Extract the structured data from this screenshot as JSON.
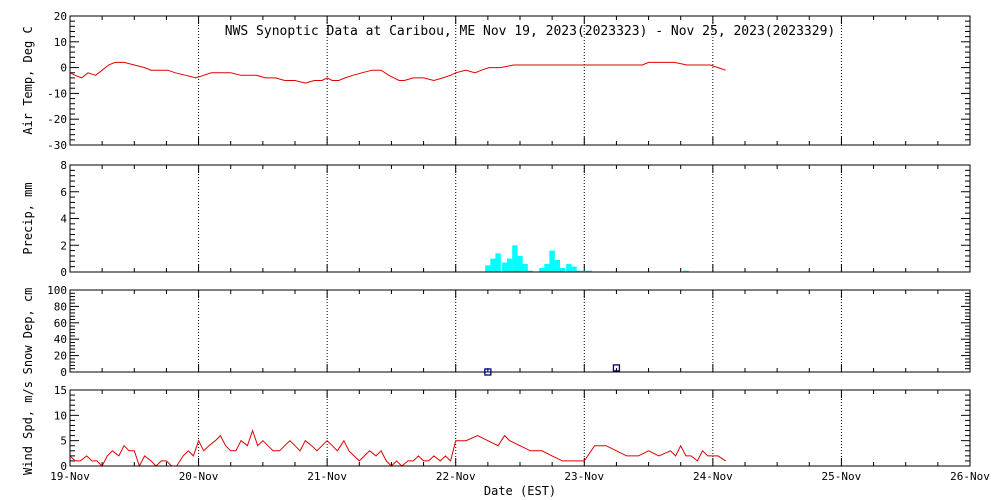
{
  "title": "NWS Synoptic Data at Caribou, ME   Nov 19, 2023(2023323) - Nov 25, 2023(2023329)",
  "xlabel": "Date (EST)",
  "colors": {
    "temp": "#e00000",
    "precip": "#00ffff",
    "snow": "#000080",
    "wind": "#e00000",
    "axis": "#000000",
    "grid": "#000000"
  },
  "chart_data": [
    {
      "id": "temp",
      "type": "line",
      "ylabel": "Air Temp, Deg C",
      "ylim": [
        -30,
        20
      ],
      "yticks": [
        -30,
        -20,
        -10,
        0,
        10,
        20
      ],
      "xlim": [
        0,
        7
      ],
      "xticks": [
        0,
        1,
        2,
        3,
        4,
        5,
        6,
        7
      ],
      "xticklabels": [
        "19-Nov",
        "20-Nov",
        "21-Nov",
        "22-Nov",
        "23-Nov",
        "24-Nov",
        "25-Nov",
        "26-Nov"
      ],
      "grid": true,
      "x": [
        0.0,
        0.04,
        0.09,
        0.14,
        0.2,
        0.25,
        0.3,
        0.35,
        0.42,
        0.5,
        0.58,
        0.63,
        0.7,
        0.76,
        0.82,
        0.9,
        0.98,
        1.04,
        1.1,
        1.17,
        1.25,
        1.33,
        1.4,
        1.45,
        1.52,
        1.6,
        1.67,
        1.75,
        1.83,
        1.9,
        1.96,
        2.0,
        2.04,
        2.09,
        2.14,
        2.2,
        2.27,
        2.35,
        2.42,
        2.48,
        2.52,
        2.56,
        2.6,
        2.67,
        2.75,
        2.83,
        2.9,
        2.96,
        3.0,
        3.08,
        3.15,
        3.2,
        3.26,
        3.35,
        3.45,
        3.55,
        3.65,
        3.75,
        3.85,
        3.95,
        4.05,
        4.15,
        4.25,
        4.35,
        4.45,
        4.5,
        4.6,
        4.7,
        4.8,
        4.9,
        4.98,
        5.04,
        5.1
      ],
      "y": [
        -2,
        -3,
        -4,
        -2,
        -3,
        -1,
        1,
        2,
        2,
        1,
        0,
        -1,
        -1,
        -1,
        -2,
        -3,
        -4,
        -3,
        -2,
        -2,
        -2,
        -3,
        -3,
        -3,
        -4,
        -4,
        -5,
        -5,
        -6,
        -5,
        -5,
        -4,
        -5,
        -5,
        -4,
        -3,
        -2,
        -1,
        -1,
        -3,
        -4,
        -5,
        -5,
        -4,
        -4,
        -5,
        -4,
        -3,
        -2,
        -1,
        -2,
        -1,
        0,
        0,
        1,
        1,
        1,
        1,
        1,
        1,
        1,
        1,
        1,
        1,
        1,
        2,
        2,
        2,
        1,
        1,
        1,
        0,
        -1
      ]
    },
    {
      "id": "precip",
      "type": "bar",
      "ylabel": "Precip, mm",
      "ylim": [
        0,
        8
      ],
      "yticks": [
        0,
        2,
        4,
        6,
        8
      ],
      "xlim": [
        0,
        7
      ],
      "xticks": [
        0,
        1,
        2,
        3,
        4,
        5,
        6,
        7
      ],
      "grid": true,
      "bar_width": 0.042,
      "x": [
        3.25,
        3.29,
        3.33,
        3.38,
        3.42,
        3.46,
        3.5,
        3.54,
        3.58,
        3.67,
        3.71,
        3.75,
        3.79,
        3.83,
        3.88,
        3.92,
        3.96,
        4.0,
        4.04,
        4.79
      ],
      "values": [
        0.5,
        1.0,
        1.4,
        0.7,
        1.0,
        2.0,
        1.2,
        0.6,
        0.1,
        0.3,
        0.6,
        1.6,
        0.9,
        0.3,
        0.6,
        0.4,
        0.1,
        0.1,
        0.1,
        0.1
      ]
    },
    {
      "id": "snow",
      "type": "scatter",
      "ylabel": "Snow Dep, cm",
      "ylim": [
        0,
        100
      ],
      "yticks": [
        0,
        20,
        40,
        60,
        80,
        100
      ],
      "minor_yticks": [
        10,
        30,
        50,
        70,
        90
      ],
      "xlim": [
        0,
        7
      ],
      "xticks": [
        0,
        1,
        2,
        3,
        4,
        5,
        6,
        7
      ],
      "grid": true,
      "x": [
        3.25,
        4.25
      ],
      "y": [
        0,
        5
      ]
    },
    {
      "id": "wind",
      "type": "line",
      "ylabel": "Wind Spd, m/s",
      "ylim": [
        0,
        15
      ],
      "yticks": [
        0,
        5,
        10,
        15
      ],
      "xlim": [
        0,
        7
      ],
      "xticks": [
        0,
        1,
        2,
        3,
        4,
        5,
        6,
        7
      ],
      "xticklabels": [
        "19-Nov",
        "20-Nov",
        "21-Nov",
        "22-Nov",
        "23-Nov",
        "24-Nov",
        "25-Nov",
        "26-Nov"
      ],
      "grid": true,
      "x": [
        0.0,
        0.04,
        0.08,
        0.13,
        0.17,
        0.21,
        0.25,
        0.29,
        0.33,
        0.38,
        0.42,
        0.46,
        0.5,
        0.54,
        0.58,
        0.63,
        0.67,
        0.71,
        0.75,
        0.79,
        0.83,
        0.88,
        0.92,
        0.96,
        1.0,
        1.04,
        1.08,
        1.13,
        1.17,
        1.21,
        1.25,
        1.29,
        1.33,
        1.38,
        1.42,
        1.46,
        1.5,
        1.54,
        1.58,
        1.63,
        1.67,
        1.71,
        1.75,
        1.79,
        1.83,
        1.88,
        1.92,
        1.96,
        2.0,
        2.04,
        2.08,
        2.13,
        2.17,
        2.21,
        2.25,
        2.29,
        2.33,
        2.38,
        2.42,
        2.46,
        2.5,
        2.54,
        2.58,
        2.63,
        2.67,
        2.71,
        2.75,
        2.79,
        2.83,
        2.88,
        2.92,
        2.96,
        3.0,
        3.08,
        3.17,
        3.25,
        3.33,
        3.38,
        3.42,
        3.5,
        3.58,
        3.67,
        3.75,
        3.83,
        3.92,
        4.0,
        4.08,
        4.17,
        4.25,
        4.33,
        4.42,
        4.5,
        4.58,
        4.67,
        4.71,
        4.75,
        4.79,
        4.83,
        4.88,
        4.92,
        4.96,
        5.0,
        5.04,
        5.1
      ],
      "y": [
        2,
        1,
        1,
        2,
        1,
        1,
        0,
        2,
        3,
        2,
        4,
        3,
        3,
        0,
        2,
        1,
        0,
        1,
        1,
        0,
        0,
        2,
        3,
        2,
        5,
        3,
        4,
        5,
        6,
        4,
        3,
        3,
        5,
        4,
        7,
        4,
        5,
        4,
        3,
        3,
        4,
        5,
        4,
        3,
        5,
        4,
        3,
        4,
        5,
        4,
        3,
        5,
        3,
        2,
        1,
        2,
        3,
        2,
        3,
        1,
        0,
        1,
        0,
        1,
        1,
        2,
        1,
        1,
        2,
        1,
        2,
        1,
        5,
        5,
        6,
        5,
        4,
        6,
        5,
        4,
        3,
        3,
        2,
        1,
        1,
        1,
        4,
        4,
        3,
        2,
        2,
        3,
        2,
        3,
        2,
        4,
        2,
        2,
        1,
        3,
        2,
        2,
        2,
        1
      ]
    }
  ]
}
